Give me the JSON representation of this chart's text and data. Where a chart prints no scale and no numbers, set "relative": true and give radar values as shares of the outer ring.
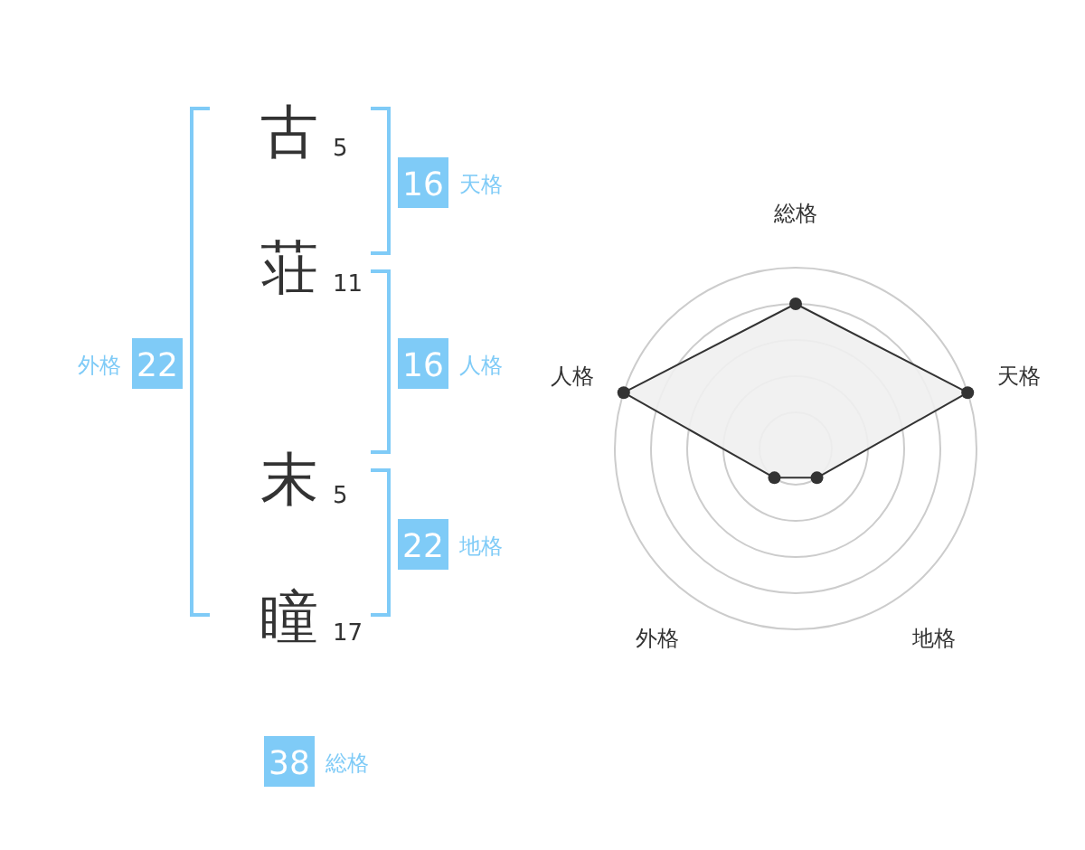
{
  "chart_data": [
    {
      "type": "other",
      "categories": [
        "古",
        "荘",
        "末",
        "瞳"
      ],
      "values": [
        5,
        11,
        5,
        17
      ],
      "data_labels": true,
      "color": "#7fcbf7",
      "annotations": [
        "16 天格",
        "16 人格",
        "22 地格",
        "外格 22",
        "38 総格"
      ]
    },
    {
      "type": "radar",
      "relative": true,
      "grid": true,
      "marker": "circle",
      "categories": [
        "総格",
        "天格",
        "地格",
        "外格",
        "人格"
      ],
      "series": [
        {
          "color": "#333333",
          "values": [
            0.8,
            1,
            0.2,
            0.2,
            1
          ]
        }
      ]
    }
  ]
}
